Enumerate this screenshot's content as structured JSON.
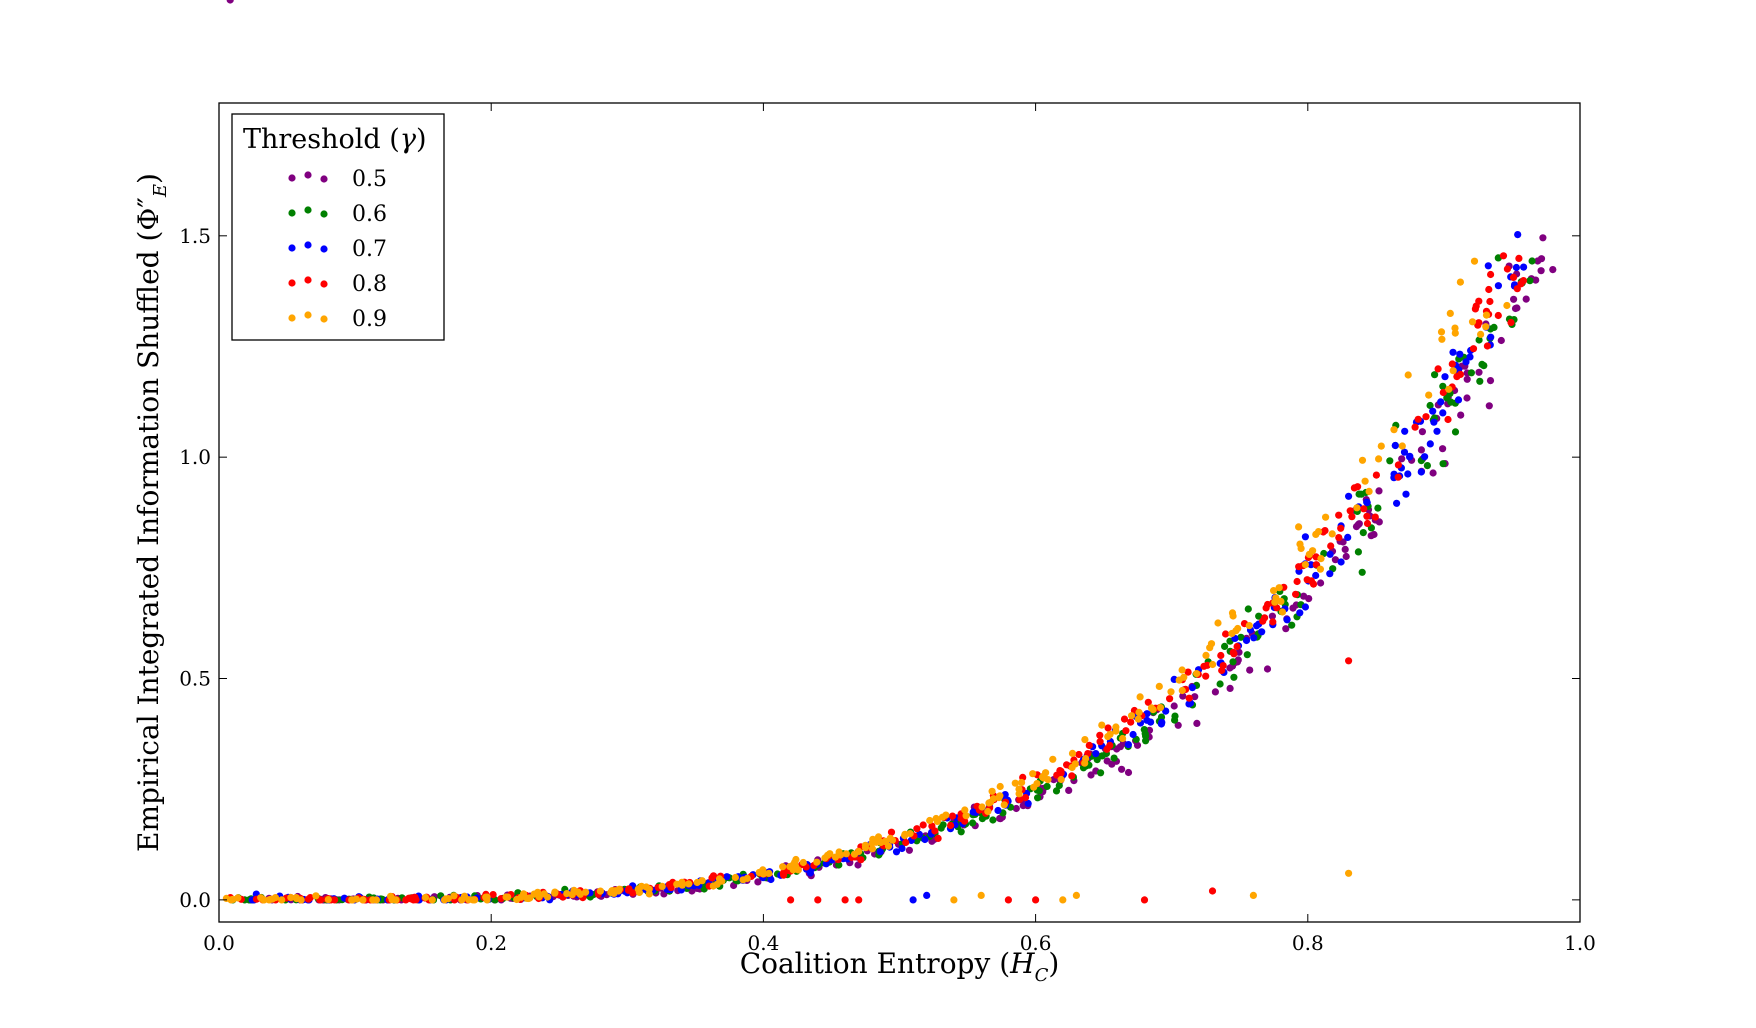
{
  "chart_data": {
    "type": "scatter",
    "xlabel": "Coalition Entropy",
    "xlabel_symbol": "H",
    "xlabel_sub": "C",
    "ylabel": "Empirical Integrated Information Shuffled",
    "ylabel_symbol": "Φ″",
    "ylabel_sub": "E",
    "xlim": [
      0.0,
      1.0
    ],
    "ylim": [
      -0.05,
      1.8
    ],
    "x_ticks": [
      0.0,
      0.2,
      0.4,
      0.6,
      0.8,
      1.0
    ],
    "x_tick_labels": [
      "0.0",
      "0.2",
      "0.4",
      "0.6",
      "0.8",
      "1.0"
    ],
    "y_ticks": [
      0.0,
      0.5,
      1.0,
      1.5
    ],
    "y_tick_labels": [
      "0.0",
      "0.5",
      "1.0",
      "1.5"
    ],
    "grid": false,
    "legend": {
      "title": "Threshold",
      "title_symbol": "γ",
      "placement": "top-left"
    },
    "trend": {
      "form": "power",
      "coef": 1.68,
      "exponent": 3.7
    },
    "series": [
      {
        "name": "0.5",
        "color": "#800080",
        "x_range": [
          0.0,
          0.98
        ],
        "points": 240,
        "outliers": []
      },
      {
        "name": "0.6",
        "color": "#008000",
        "x_range": [
          0.0,
          0.97
        ],
        "points": 240,
        "outliers": [
          [
            0.95,
            1.3
          ],
          [
            0.94,
            1.45
          ],
          [
            0.84,
            0.74
          ]
        ]
      },
      {
        "name": "0.7",
        "color": "#0000ff",
        "x_range": [
          0.0,
          0.96
        ],
        "points": 240,
        "outliers": [
          [
            0.51,
            0.0
          ],
          [
            0.52,
            0.01
          ],
          [
            0.89,
            1.03
          ]
        ]
      },
      {
        "name": "0.8",
        "color": "#ff0000",
        "x_range": [
          0.0,
          0.96
        ],
        "points": 240,
        "outliers": [
          [
            0.42,
            0.0
          ],
          [
            0.44,
            0.0
          ],
          [
            0.46,
            0.0
          ],
          [
            0.47,
            0.0
          ],
          [
            0.58,
            0.0
          ],
          [
            0.6,
            0.0
          ],
          [
            0.68,
            0.0
          ],
          [
            0.73,
            0.02
          ],
          [
            0.83,
            0.54
          ],
          [
            0.94,
            1.32
          ]
        ]
      },
      {
        "name": "0.9",
        "color": "#ffa500",
        "x_range": [
          0.0,
          0.95
        ],
        "points": 240,
        "outliers": [
          [
            0.54,
            0.0
          ],
          [
            0.56,
            0.01
          ],
          [
            0.62,
            0.0
          ],
          [
            0.63,
            0.01
          ],
          [
            0.76,
            0.01
          ],
          [
            0.83,
            0.06
          ]
        ]
      }
    ]
  }
}
